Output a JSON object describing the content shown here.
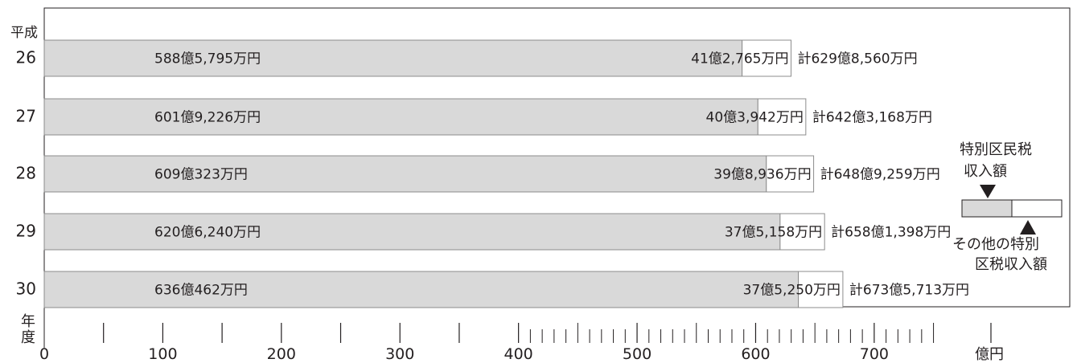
{
  "chart_data": {
    "type": "bar",
    "stacked": true,
    "orientation": "horizontal",
    "era_label": "平成",
    "year_axis_label": [
      "年",
      "度"
    ],
    "unit_label": "億円",
    "xlim": [
      0,
      767
    ],
    "ticks": [
      0,
      100,
      200,
      300,
      400,
      500,
      600,
      700
    ],
    "minor_ticks": [
      50,
      150,
      250,
      350
    ],
    "fine_ticks_range": [
      400,
      750,
      10
    ],
    "categories": [
      "26",
      "27",
      "28",
      "29",
      "30"
    ],
    "series": [
      {
        "name": "特別区民税収入額",
        "color": "#d9d9d9",
        "values": [
          588.5795,
          601.9226,
          609.0323,
          620.624,
          636.0462
        ],
        "labels": [
          "588億5,795万円",
          "601億9,226万円",
          "609億323万円",
          "620億6,240万円",
          "636億462万円"
        ]
      },
      {
        "name": "その他の特別区税収入額",
        "color": "#ffffff",
        "values": [
          41.2765,
          40.3942,
          39.8936,
          37.5158,
          37.525
        ],
        "labels": [
          "41億2,765万円",
          "40億3,942万円",
          "39億8,936万円",
          "37億5,158万円",
          "37億5,250万円"
        ]
      }
    ],
    "totals": [
      629.856,
      642.3168,
      648.9259,
      658.1398,
      673.5713
    ],
    "total_labels": [
      "計629億8,560万円",
      "計642億3,168万円",
      "計648億9,259万円",
      "計658億1,398万円",
      "計673億5,713万円"
    ],
    "legend": {
      "placement": "right",
      "top_label": [
        "特別区民税",
        "収入額"
      ],
      "bottom_label": [
        "その他の特別",
        "区税収入額"
      ]
    }
  }
}
